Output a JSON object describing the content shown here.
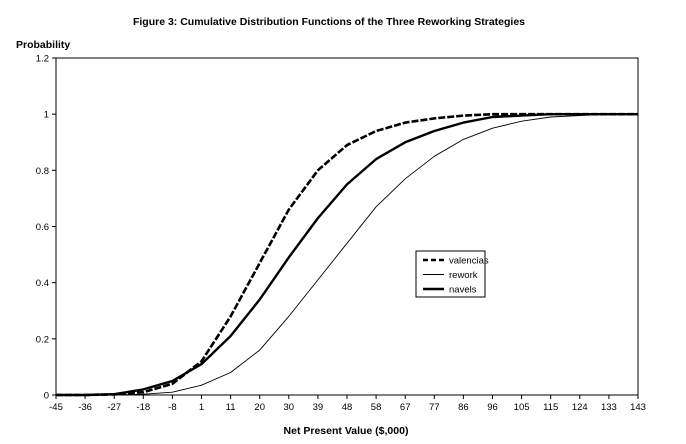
{
  "chart_data": {
    "type": "line",
    "title": "Figure 3: Cumulative Distribution Functions of the Three Reworking Strategies",
    "xlabel": "Net Present Value ($,000)",
    "ylabel": "Probability",
    "x_categories": [
      "-45",
      "-36",
      "-27",
      "-18",
      "-8",
      "1",
      "11",
      "20",
      "30",
      "39",
      "48",
      "58",
      "67",
      "77",
      "86",
      "96",
      "105",
      "115",
      "124",
      "133",
      "143"
    ],
    "xlim": [
      -45,
      143
    ],
    "ylim": [
      0,
      1.2
    ],
    "y_ticks": [
      "0",
      "0.2",
      "0.4",
      "0.6",
      "0.8",
      "1",
      "1.2"
    ],
    "y_tick_values": [
      0,
      0.2,
      0.4,
      0.6,
      0.8,
      1.0,
      1.2
    ],
    "grid": false,
    "legend_position": "center-right",
    "series": [
      {
        "name": "valencias",
        "style": "dashed-thick",
        "x": [
          -45,
          -36,
          -27,
          -18,
          -8,
          1,
          11,
          20,
          30,
          39,
          48,
          58,
          67,
          77,
          86,
          96,
          105,
          115,
          124,
          133,
          143
        ],
        "y": [
          0.0,
          0.0,
          0.002,
          0.01,
          0.04,
          0.12,
          0.28,
          0.47,
          0.66,
          0.8,
          0.89,
          0.94,
          0.97,
          0.985,
          0.995,
          1.0,
          1.0,
          1.0,
          1.0,
          1.0,
          1.0
        ]
      },
      {
        "name": "rework",
        "style": "thin",
        "x": [
          -45,
          -36,
          -27,
          -18,
          -8,
          1,
          11,
          20,
          30,
          39,
          48,
          58,
          67,
          77,
          86,
          96,
          105,
          115,
          124,
          133,
          143
        ],
        "y": [
          0.0,
          0.0,
          0.0,
          0.003,
          0.01,
          0.035,
          0.08,
          0.16,
          0.28,
          0.41,
          0.54,
          0.67,
          0.77,
          0.85,
          0.91,
          0.95,
          0.975,
          0.99,
          0.995,
          1.0,
          1.0
        ]
      },
      {
        "name": "navels",
        "style": "thick",
        "x": [
          -45,
          -36,
          -27,
          -18,
          -8,
          1,
          11,
          20,
          30,
          39,
          48,
          58,
          67,
          77,
          86,
          96,
          105,
          115,
          124,
          133,
          143
        ],
        "y": [
          0.0,
          0.0,
          0.003,
          0.02,
          0.05,
          0.11,
          0.21,
          0.34,
          0.49,
          0.63,
          0.75,
          0.84,
          0.9,
          0.94,
          0.97,
          0.99,
          0.995,
          1.0,
          1.0,
          1.0,
          1.0
        ]
      }
    ],
    "colors": {
      "line": "#000000",
      "background": "#ffffff",
      "frame": "#000000"
    }
  }
}
